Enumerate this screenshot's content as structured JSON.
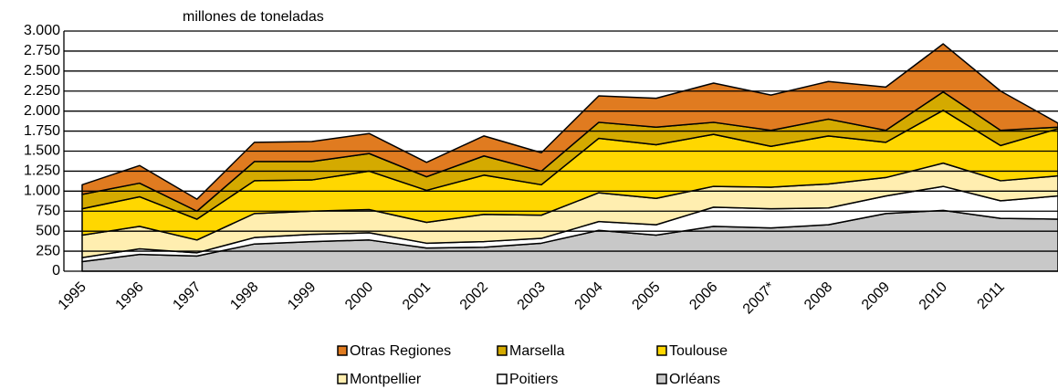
{
  "chart_data": {
    "type": "stacked_area",
    "y_label": "millones de toneladas",
    "categories": [
      "1995",
      "1996",
      "1997",
      "1998",
      "1999",
      "2000",
      "2001",
      "2002",
      "2003",
      "2004",
      "2005",
      "2006",
      "2007*",
      "2008",
      "2009",
      "2010",
      "2011",
      null
    ],
    "series": [
      {
        "name": "Orléans",
        "color": "#c8c8c8",
        "values": [
          120,
          210,
          190,
          340,
          370,
          390,
          290,
          300,
          350,
          510,
          450,
          560,
          540,
          580,
          720,
          760,
          660,
          650
        ]
      },
      {
        "name": "Poitiers",
        "color": "#ffffff",
        "values": [
          50,
          70,
          40,
          80,
          90,
          90,
          60,
          70,
          60,
          110,
          130,
          240,
          240,
          210,
          220,
          300,
          220,
          290
        ]
      },
      {
        "name": "Montpellier",
        "color": "#ffeeb0",
        "values": [
          280,
          280,
          160,
          300,
          290,
          290,
          260,
          340,
          290,
          360,
          330,
          260,
          270,
          300,
          230,
          290,
          250,
          250
        ]
      },
      {
        "name": "Toulouse",
        "color": "#ffd700",
        "values": [
          330,
          370,
          260,
          410,
          390,
          480,
          400,
          490,
          380,
          680,
          670,
          650,
          510,
          600,
          440,
          660,
          440,
          590
        ]
      },
      {
        "name": "Marsella",
        "color": "#d4aa00",
        "values": [
          180,
          170,
          100,
          240,
          230,
          220,
          170,
          240,
          170,
          200,
          220,
          150,
          200,
          210,
          150,
          230,
          190,
          20
        ]
      },
      {
        "name": "Otras Regiones",
        "color": "#e07b20",
        "values": [
          120,
          220,
          150,
          240,
          250,
          250,
          180,
          250,
          230,
          330,
          360,
          490,
          440,
          470,
          540,
          600,
          490,
          50
        ]
      }
    ],
    "ylim": [
      0,
      3000
    ],
    "yticks": [
      0,
      250,
      500,
      750,
      {
        "value": 1000,
        "label": "1.000"
      },
      {
        "value": 1250,
        "label": "1.250"
      },
      {
        "value": 1500,
        "label": "1.500"
      },
      {
        "value": 1750,
        "label": "1.750"
      },
      {
        "value": 2000,
        "label": "2.000"
      },
      {
        "value": 2250,
        "label": "2.250"
      },
      {
        "value": 2500,
        "label": "2.500"
      },
      {
        "value": 2750,
        "label": "2.750"
      },
      {
        "value": 3000,
        "label": "3.000"
      }
    ],
    "grid": true
  }
}
